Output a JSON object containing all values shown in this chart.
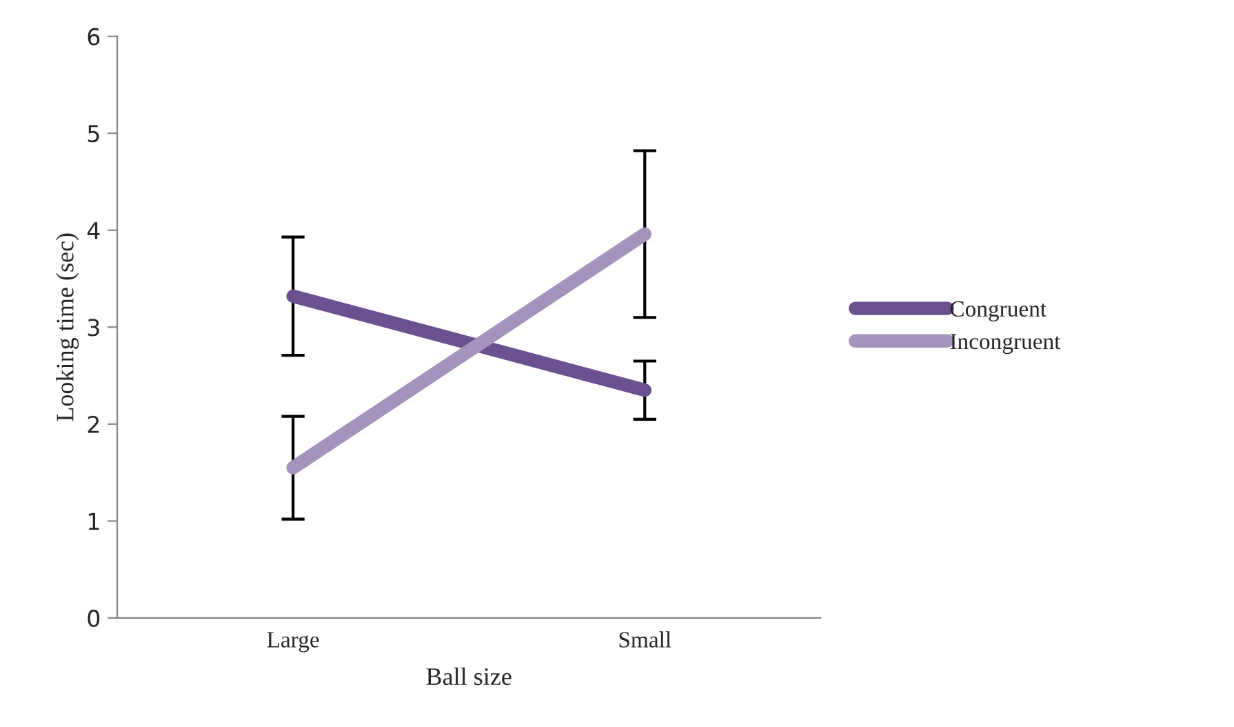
{
  "chart_data": {
    "type": "line",
    "xlabel": "Ball size",
    "ylabel": "Looking time (sec)",
    "categories": [
      "Large",
      "Small"
    ],
    "series": [
      {
        "name": "Congruent",
        "color": "#6b5190",
        "values": [
          3.32,
          2.35
        ],
        "errors": [
          0.61,
          0.3
        ]
      },
      {
        "name": "Incongruent",
        "color": "#a393bd",
        "values": [
          1.55,
          3.96
        ],
        "errors": [
          0.53,
          0.86
        ]
      }
    ],
    "ylim": [
      0,
      6
    ],
    "yticks": [
      0,
      1,
      2,
      3,
      4,
      5,
      6
    ],
    "grid": false,
    "legend": "right",
    "marker": "none"
  }
}
